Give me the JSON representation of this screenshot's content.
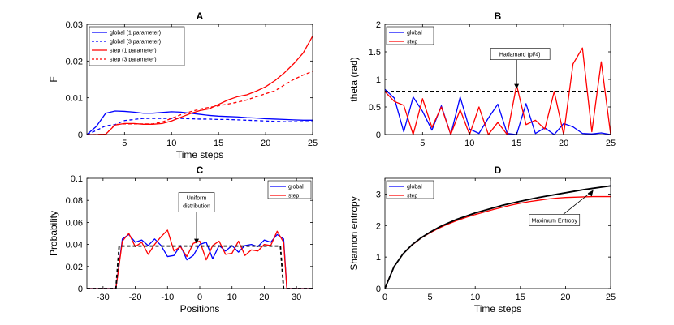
{
  "chart_data": [
    {
      "type": "line",
      "title": "A",
      "xlabel": "Time steps",
      "ylabel": "F",
      "xlim": [
        1,
        25
      ],
      "ylim": [
        0,
        0.03
      ],
      "xticks": [
        5,
        10,
        15,
        20,
        25
      ],
      "yticks": [
        0,
        0.01,
        0.02,
        0.03
      ],
      "ytick_labels": [
        "0",
        "0.01",
        "0.02",
        "0.03"
      ],
      "legend_position": "top-left",
      "series": [
        {
          "name": "global (1 parameter)",
          "color": "#0000ff",
          "dash": "solid",
          "x": [
            1,
            2,
            3,
            4,
            5,
            6,
            7,
            8,
            9,
            10,
            11,
            12,
            13,
            14,
            15,
            16,
            17,
            18,
            19,
            20,
            21,
            22,
            23,
            24,
            25
          ],
          "y": [
            0,
            0.0022,
            0.0058,
            0.0064,
            0.0063,
            0.0061,
            0.0058,
            0.0058,
            0.006,
            0.0062,
            0.0061,
            0.0058,
            0.0055,
            0.0052,
            0.005,
            0.0049,
            0.0048,
            0.0046,
            0.0045,
            0.0043,
            0.0042,
            0.0041,
            0.004,
            0.0039,
            0.0039
          ]
        },
        {
          "name": "global (3 parameter)",
          "color": "#0000ff",
          "dash": "dashed",
          "x": [
            1,
            2,
            3,
            4,
            5,
            6,
            7,
            8,
            9,
            10,
            11,
            12,
            13,
            14,
            15,
            16,
            17,
            18,
            19,
            20,
            21,
            22,
            23,
            24,
            25
          ],
          "y": [
            0,
            0.0011,
            0.0024,
            0.0027,
            0.0038,
            0.0041,
            0.0044,
            0.0044,
            0.0044,
            0.0044,
            0.0044,
            0.0043,
            0.0042,
            0.0042,
            0.0041,
            0.0041,
            0.004,
            0.0039,
            0.0038,
            0.0037,
            0.0036,
            0.0035,
            0.0035,
            0.0035,
            0.0035
          ]
        },
        {
          "name": "step (1 parameter)",
          "color": "#ff0000",
          "dash": "solid",
          "x": [
            1,
            2,
            3,
            4,
            5,
            6,
            7,
            8,
            9,
            10,
            11,
            12,
            13,
            14,
            15,
            16,
            17,
            18,
            19,
            20,
            21,
            22,
            23,
            24,
            25
          ],
          "y": [
            0,
            0,
            0.0001,
            0.0026,
            0.003,
            0.003,
            0.0028,
            0.0028,
            0.003,
            0.0037,
            0.0047,
            0.0057,
            0.0065,
            0.007,
            0.0082,
            0.0094,
            0.0103,
            0.0108,
            0.0118,
            0.013,
            0.0147,
            0.0168,
            0.0193,
            0.0222,
            0.0268
          ]
        },
        {
          "name": "step (3 parameter)",
          "color": "#ff0000",
          "dash": "dashed",
          "x": [
            1,
            2,
            3,
            4,
            5,
            6,
            7,
            8,
            9,
            10,
            11,
            12,
            13,
            14,
            15,
            16,
            17,
            18,
            19,
            20,
            21,
            22,
            23,
            24,
            25
          ],
          "y": [
            0,
            0,
            0.0001,
            0.0027,
            0.0029,
            0.0029,
            0.0029,
            0.0029,
            0.0034,
            0.0044,
            0.0054,
            0.0062,
            0.0069,
            0.0074,
            0.0078,
            0.0083,
            0.0088,
            0.0094,
            0.0103,
            0.0111,
            0.0119,
            0.0135,
            0.015,
            0.0162,
            0.0172
          ]
        }
      ]
    },
    {
      "type": "line",
      "title": "B",
      "xlabel": "",
      "ylabel": "theta (rad)",
      "xlim": [
        1,
        25
      ],
      "ylim": [
        0,
        2
      ],
      "xticks": [
        5,
        10,
        15,
        20,
        25
      ],
      "yticks": [
        0,
        0.5,
        1,
        1.5,
        2
      ],
      "ytick_labels": [
        "0",
        "0.5",
        "1",
        "1.5",
        "2"
      ],
      "legend_position": "top-left",
      "annotation": {
        "text": "Hadamard (pi/4)",
        "x": 15,
        "y": 0.785
      },
      "reference_line": {
        "y": 0.785,
        "color": "#000000",
        "dash": "dashed"
      },
      "series": [
        {
          "name": "global",
          "color": "#0000ff",
          "dash": "solid",
          "x": [
            1,
            2,
            3,
            4,
            5,
            6,
            7,
            8,
            9,
            10,
            11,
            12,
            13,
            14,
            15,
            16,
            17,
            18,
            19,
            20,
            21,
            22,
            23,
            24,
            25
          ],
          "y": [
            0.82,
            0.66,
            0.05,
            0.68,
            0.42,
            0.08,
            0.52,
            0.0,
            0.68,
            0.1,
            0.02,
            0.3,
            0.55,
            0.02,
            0.0,
            0.56,
            0.02,
            0.12,
            0.0,
            0.2,
            0.14,
            0.02,
            0.01,
            0.03,
            0.0
          ]
        },
        {
          "name": "step",
          "color": "#ff0000",
          "dash": "solid",
          "x": [
            1,
            2,
            3,
            4,
            5,
            6,
            7,
            8,
            9,
            10,
            11,
            12,
            13,
            14,
            15,
            16,
            17,
            18,
            19,
            20,
            21,
            22,
            23,
            24,
            25
          ],
          "y": [
            0.78,
            0.6,
            0.53,
            0.0,
            0.65,
            0.13,
            0.5,
            0.0,
            0.45,
            0.0,
            0.5,
            0.0,
            0.22,
            0.0,
            0.9,
            0.18,
            0.26,
            0.1,
            0.78,
            0.0,
            1.28,
            1.57,
            0.05,
            1.32,
            0.0
          ]
        }
      ]
    },
    {
      "type": "line",
      "title": "C",
      "xlabel": "Positions",
      "ylabel": "Probability",
      "xlim": [
        -35,
        35
      ],
      "ylim": [
        0,
        0.1
      ],
      "xticks": [
        -30,
        -20,
        -10,
        0,
        10,
        20,
        30
      ],
      "yticks": [
        0,
        0.02,
        0.04,
        0.06,
        0.08,
        0.1
      ],
      "ytick_labels": [
        "0",
        "0.02",
        "0.04",
        "0.06",
        "0.08",
        "0.1"
      ],
      "legend_position": "top-right",
      "annotation": {
        "text": [
          "Uniform",
          "distribution"
        ],
        "x": -1,
        "y": 0.0385
      },
      "series": [
        {
          "name": "global",
          "color": "#0000ff",
          "dash": "solid",
          "x": [
            -35,
            -27,
            -26,
            -24,
            -22,
            -20,
            -18,
            -16,
            -14,
            -12,
            -10,
            -8,
            -6,
            -4,
            -2,
            0,
            2,
            4,
            6,
            8,
            10,
            12,
            14,
            16,
            18,
            20,
            22,
            24,
            26,
            27,
            35
          ],
          "y": [
            0,
            0,
            0,
            0.045,
            0.049,
            0.042,
            0.044,
            0.039,
            0.045,
            0.039,
            0.029,
            0.03,
            0.039,
            0.026,
            0.03,
            0.04,
            0.042,
            0.027,
            0.039,
            0.034,
            0.039,
            0.033,
            0.039,
            0.04,
            0.038,
            0.044,
            0.042,
            0.049,
            0.045,
            0,
            0
          ]
        },
        {
          "name": "step",
          "color": "#ff0000",
          "dash": "solid",
          "x": [
            -35,
            -27,
            -26,
            -24,
            -22,
            -20,
            -18,
            -16,
            -14,
            -12,
            -10,
            -8,
            -6,
            -4,
            -2,
            0,
            2,
            4,
            6,
            8,
            10,
            12,
            14,
            16,
            18,
            20,
            22,
            24,
            26,
            27,
            35
          ],
          "y": [
            0,
            0,
            0,
            0.043,
            0.05,
            0.038,
            0.042,
            0.031,
            0.04,
            0.047,
            0.053,
            0.034,
            0.038,
            0.029,
            0.041,
            0.043,
            0.026,
            0.039,
            0.043,
            0.031,
            0.032,
            0.043,
            0.03,
            0.035,
            0.034,
            0.04,
            0.039,
            0.052,
            0.042,
            0,
            0
          ]
        },
        {
          "name": "Uniform distribution",
          "color": "#000000",
          "dash": "dashed",
          "in_legend": false,
          "x": [
            -35,
            -26,
            -25,
            25,
            26,
            35
          ],
          "y": [
            0,
            0,
            0.0385,
            0.0385,
            0,
            0
          ]
        }
      ]
    },
    {
      "type": "line",
      "title": "D",
      "xlabel": "Time steps",
      "ylabel": "Shannon entropy",
      "xlim": [
        0,
        25
      ],
      "ylim": [
        0,
        3.5
      ],
      "xticks": [
        0,
        5,
        10,
        15,
        20,
        25
      ],
      "yticks": [
        0,
        1,
        2,
        3
      ],
      "ytick_labels": [
        "0",
        "1",
        "2",
        "3"
      ],
      "legend_position": "top-left",
      "annotation": {
        "text": "Maximum Entropy",
        "x": 23,
        "y": 3.18
      },
      "series": [
        {
          "name": "global",
          "color": "#0000ff",
          "dash": "solid",
          "x": [
            0,
            1,
            2,
            3,
            4,
            5,
            6,
            7,
            8,
            9,
            10,
            11,
            12,
            13,
            14,
            15,
            16,
            17,
            18,
            19,
            20,
            21,
            22,
            23,
            24,
            25
          ],
          "y": [
            0,
            0.69,
            1.1,
            1.39,
            1.61,
            1.79,
            1.95,
            2.08,
            2.2,
            2.3,
            2.4,
            2.48,
            2.56,
            2.64,
            2.71,
            2.77,
            2.83,
            2.89,
            2.94,
            2.99,
            3.04,
            3.09,
            3.14,
            3.18,
            3.22,
            3.26
          ]
        },
        {
          "name": "step",
          "color": "#ff0000",
          "dash": "solid",
          "x": [
            0,
            1,
            2,
            3,
            4,
            5,
            6,
            7,
            8,
            9,
            10,
            11,
            12,
            13,
            14,
            15,
            16,
            17,
            18,
            19,
            20,
            21,
            22,
            23,
            24,
            25
          ],
          "y": [
            0,
            0.69,
            1.1,
            1.38,
            1.6,
            1.77,
            1.92,
            2.05,
            2.16,
            2.26,
            2.35,
            2.43,
            2.51,
            2.58,
            2.65,
            2.71,
            2.76,
            2.8,
            2.84,
            2.87,
            2.89,
            2.9,
            2.91,
            2.92,
            2.92,
            2.92
          ]
        },
        {
          "name": "Maximum Entropy",
          "color": "#000000",
          "dash": "solid",
          "in_legend": false,
          "x": [
            0,
            1,
            2,
            3,
            4,
            5,
            6,
            7,
            8,
            9,
            10,
            11,
            12,
            13,
            14,
            15,
            16,
            17,
            18,
            19,
            20,
            21,
            22,
            23,
            24,
            25
          ],
          "y": [
            0,
            0.69,
            1.1,
            1.39,
            1.61,
            1.79,
            1.95,
            2.08,
            2.2,
            2.3,
            2.4,
            2.48,
            2.56,
            2.64,
            2.71,
            2.77,
            2.83,
            2.89,
            2.94,
            2.99,
            3.04,
            3.09,
            3.14,
            3.18,
            3.22,
            3.26
          ]
        }
      ]
    }
  ]
}
